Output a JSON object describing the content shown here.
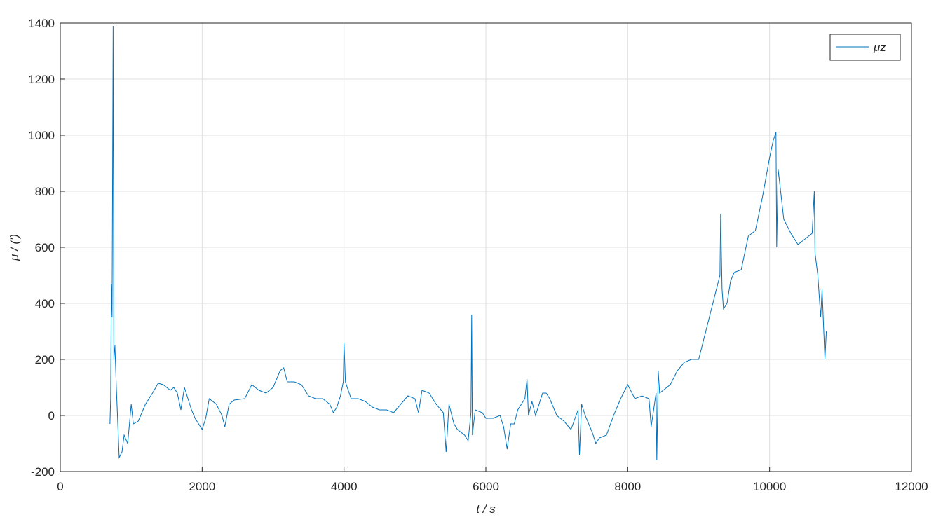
{
  "chart_data": {
    "type": "line",
    "xlabel": "t / s",
    "ylabel": "μ / (′)",
    "x": [
      700,
      710,
      720,
      730,
      745,
      755,
      770,
      790,
      830,
      870,
      900,
      950,
      1000,
      1030,
      1100,
      1150,
      1200,
      1300,
      1380,
      1450,
      1550,
      1600,
      1650,
      1700,
      1750,
      1800,
      1850,
      1900,
      1950,
      2000,
      2050,
      2100,
      2200,
      2280,
      2320,
      2380,
      2450,
      2600,
      2700,
      2800,
      2900,
      3000,
      3100,
      3150,
      3200,
      3300,
      3400,
      3500,
      3600,
      3700,
      3800,
      3850,
      3900,
      3950,
      3990,
      4000,
      4020,
      4100,
      4200,
      4300,
      4400,
      4500,
      4600,
      4700,
      4800,
      4900,
      5000,
      5050,
      5100,
      5200,
      5300,
      5400,
      5440,
      5480,
      5550,
      5600,
      5700,
      5750,
      5790,
      5800,
      5810,
      5850,
      5950,
      6000,
      6100,
      6200,
      6250,
      6300,
      6350,
      6400,
      6450,
      6500,
      6550,
      6580,
      6600,
      6650,
      6700,
      6800,
      6850,
      6900,
      7000,
      7100,
      7200,
      7300,
      7320,
      7350,
      7400,
      7500,
      7550,
      7600,
      7700,
      7800,
      7900,
      8000,
      8100,
      8200,
      8300,
      8330,
      8400,
      8410,
      8430,
      8450,
      8600,
      8700,
      8800,
      8900,
      9000,
      9100,
      9200,
      9300,
      9310,
      9330,
      9350,
      9400,
      9450,
      9500,
      9600,
      9700,
      9800,
      9900,
      10000,
      10050,
      10090,
      10100,
      10120,
      10200,
      10300,
      10400,
      10500,
      10600,
      10630,
      10640,
      10680,
      10720,
      10740,
      10780,
      10800
    ],
    "series": [
      {
        "name": "μz",
        "color": "#0072bd",
        "values": [
          -30,
          60,
          470,
          350,
          1390,
          200,
          250,
          100,
          -150,
          -130,
          -70,
          -100,
          40,
          -30,
          -20,
          10,
          40,
          80,
          115,
          110,
          90,
          100,
          80,
          20,
          100,
          60,
          20,
          -10,
          -30,
          -50,
          -10,
          60,
          40,
          0,
          -40,
          40,
          55,
          60,
          110,
          90,
          80,
          100,
          160,
          170,
          120,
          120,
          110,
          70,
          60,
          60,
          40,
          10,
          30,
          70,
          120,
          260,
          120,
          60,
          60,
          50,
          30,
          20,
          20,
          10,
          40,
          70,
          60,
          10,
          90,
          80,
          40,
          10,
          -130,
          40,
          -30,
          -50,
          -70,
          -90,
          10,
          360,
          -70,
          20,
          10,
          -10,
          -10,
          0,
          -40,
          -120,
          -30,
          -30,
          20,
          40,
          60,
          130,
          0,
          50,
          0,
          80,
          80,
          60,
          0,
          -20,
          -50,
          20,
          -140,
          40,
          0,
          -60,
          -100,
          -80,
          -70,
          0,
          60,
          110,
          60,
          70,
          60,
          -40,
          80,
          -160,
          160,
          80,
          110,
          160,
          190,
          200,
          200,
          300,
          400,
          500,
          720,
          450,
          380,
          400,
          480,
          510,
          520,
          640,
          660,
          780,
          920,
          980,
          1010,
          600,
          880,
          700,
          650,
          610,
          630,
          650,
          800,
          580,
          500,
          350,
          450,
          200,
          300
        ]
      }
    ],
    "xlim": [
      0,
      12000
    ],
    "xticks": [
      0,
      2000,
      4000,
      6000,
      8000,
      10000,
      12000
    ],
    "ylim": [
      -200,
      1400
    ],
    "yticks": [
      -200,
      0,
      200,
      400,
      600,
      800,
      1000,
      1200,
      1400
    ],
    "grid": true,
    "legend": "upper-right"
  }
}
